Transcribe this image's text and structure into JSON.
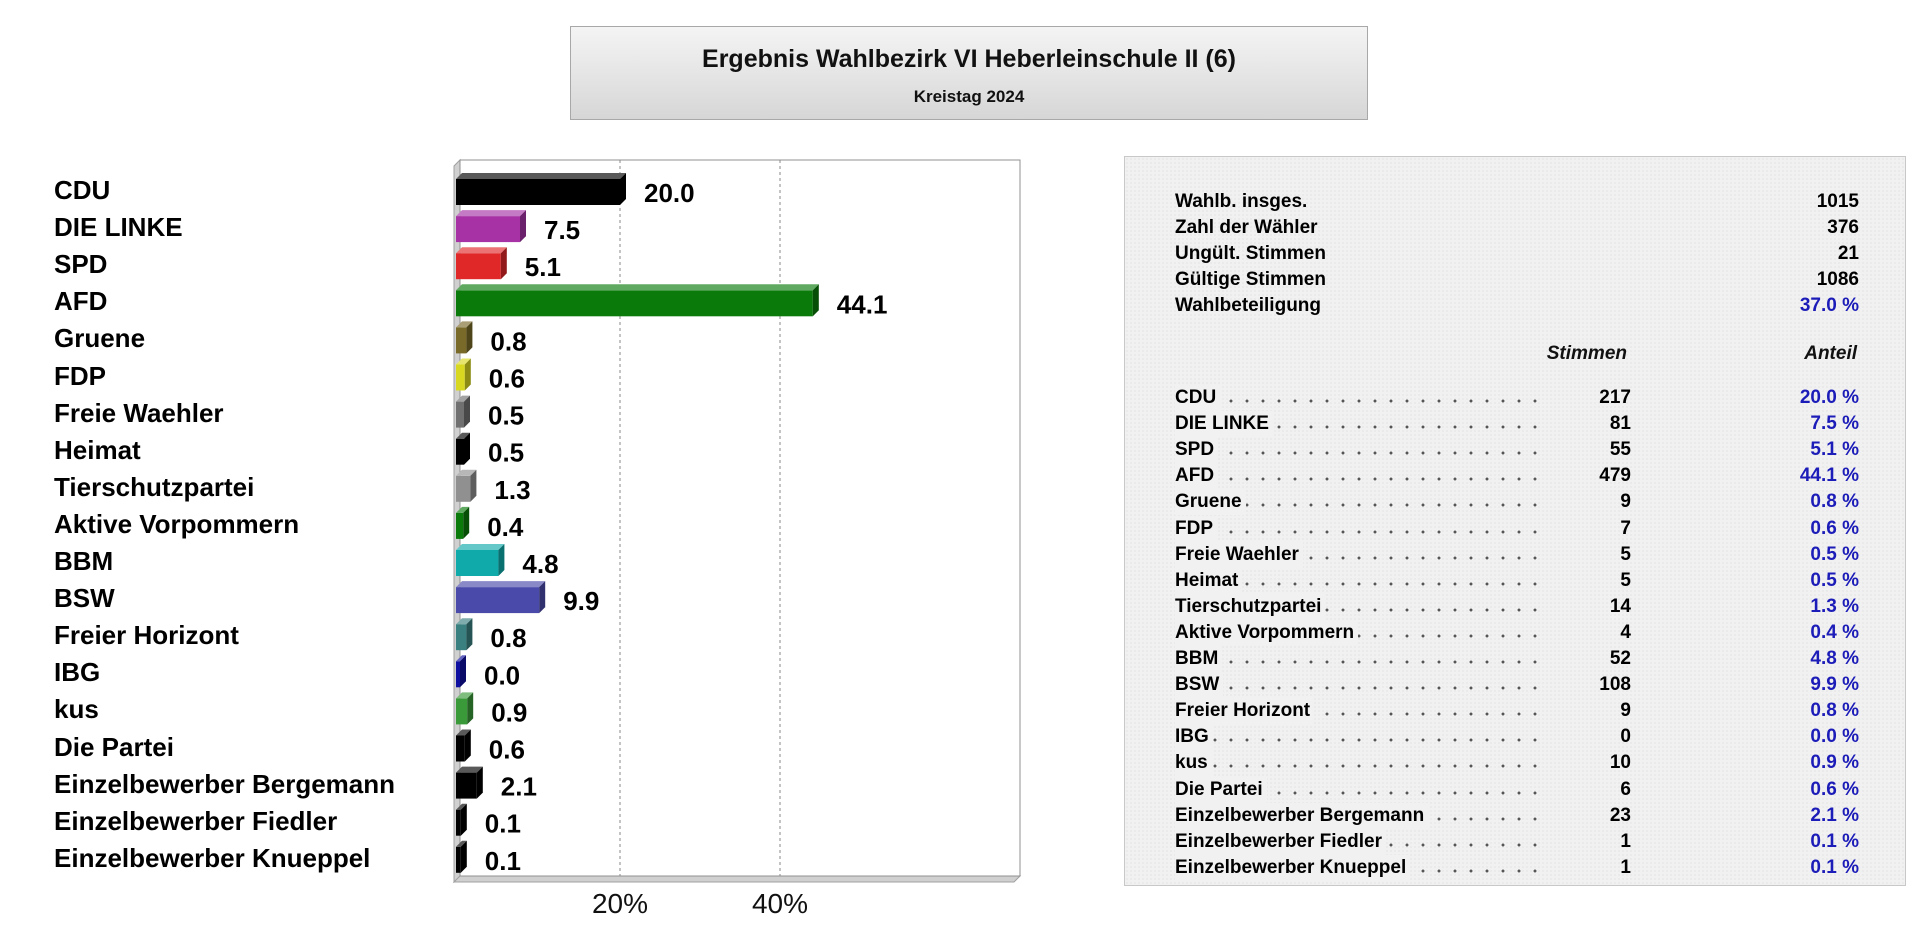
{
  "header": {
    "title": "Ergebnis Wahlbezirk VI Heberleinschule II (6)",
    "subtitle": "Kreistag 2024"
  },
  "chart_data": {
    "type": "bar",
    "orientation": "horizontal",
    "categories": [
      "CDU",
      "DIE LINKE",
      "SPD",
      "AFD",
      "Gruene",
      "FDP",
      "Freie Waehler",
      "Heimat",
      "Tierschutzpartei",
      "Aktive Vorpommern",
      "BBM",
      "BSW",
      "Freier Horizont",
      "IBG",
      "kus",
      "Die Partei",
      "Einzelbewerber Bergemann",
      "Einzelbewerber Fiedler",
      "Einzelbewerber Knueppel"
    ],
    "values": [
      20.0,
      7.5,
      5.1,
      44.1,
      0.8,
      0.6,
      0.5,
      0.5,
      1.3,
      0.4,
      4.8,
      9.9,
      0.8,
      0.0,
      0.9,
      0.6,
      2.1,
      0.1,
      0.1
    ],
    "value_labels": [
      "20.0",
      "7.5",
      "5.1",
      "44.1",
      "0.8",
      "0.6",
      "0.5",
      "0.5",
      "1.3",
      "0.4",
      "4.8",
      "9.9",
      "0.8",
      "0.0",
      "0.9",
      "0.6",
      "2.1",
      "0.1",
      "0.1"
    ],
    "colors": [
      "#000000",
      "#a632a6",
      "#e02828",
      "#0a7a0a",
      "#7a6a2a",
      "#d8d820",
      "#707070",
      "#000000",
      "#909090",
      "#0a7a0a",
      "#10aaaa",
      "#4a4aaa",
      "#3a8080",
      "#1010a0",
      "#3a9a3a",
      "#000000",
      "#000000",
      "#000000",
      "#000000"
    ],
    "xlim": [
      0,
      70
    ],
    "x_ticks": [
      20,
      40
    ],
    "x_tick_labels": [
      "20%",
      "40%"
    ],
    "grid": "vertical dashed"
  },
  "summary": [
    {
      "label": "Wahlb. insges.",
      "value": "1015"
    },
    {
      "label": "Zahl der Wähler",
      "value": "376"
    },
    {
      "label": "Ungült. Stimmen",
      "value": "21"
    },
    {
      "label": "Gültige Stimmen",
      "value": "1086"
    },
    {
      "label": "Wahlbeteiligung",
      "value": "37.0 %",
      "highlight": true
    }
  ],
  "table_headers": {
    "votes": "Stimmen",
    "share": "Anteil"
  },
  "results": [
    {
      "party": "CDU",
      "votes": "217",
      "share": "20.0 %"
    },
    {
      "party": "DIE LINKE",
      "votes": "81",
      "share": "7.5 %"
    },
    {
      "party": "SPD",
      "votes": "55",
      "share": "5.1 %"
    },
    {
      "party": "AFD",
      "votes": "479",
      "share": "44.1 %"
    },
    {
      "party": "Gruene",
      "votes": "9",
      "share": "0.8 %"
    },
    {
      "party": "FDP",
      "votes": "7",
      "share": "0.6 %"
    },
    {
      "party": "Freie Waehler",
      "votes": "5",
      "share": "0.5 %"
    },
    {
      "party": "Heimat",
      "votes": "5",
      "share": "0.5 %"
    },
    {
      "party": "Tierschutzpartei",
      "votes": "14",
      "share": "1.3 %"
    },
    {
      "party": "Aktive Vorpommern",
      "votes": "4",
      "share": "0.4 %"
    },
    {
      "party": "BBM",
      "votes": "52",
      "share": "4.8 %"
    },
    {
      "party": "BSW",
      "votes": "108",
      "share": "9.9 %"
    },
    {
      "party": "Freier Horizont",
      "votes": "9",
      "share": "0.8 %"
    },
    {
      "party": "IBG",
      "votes": "0",
      "share": "0.0 %"
    },
    {
      "party": "kus",
      "votes": "10",
      "share": "0.9 %"
    },
    {
      "party": "Die Partei",
      "votes": "6",
      "share": "0.6 %"
    },
    {
      "party": "Einzelbewerber Bergemann",
      "votes": "23",
      "share": "2.1 %"
    },
    {
      "party": "Einzelbewerber Fiedler",
      "votes": "1",
      "share": "0.1 %"
    },
    {
      "party": "Einzelbewerber Knueppel",
      "votes": "1",
      "share": "0.1 %"
    }
  ]
}
